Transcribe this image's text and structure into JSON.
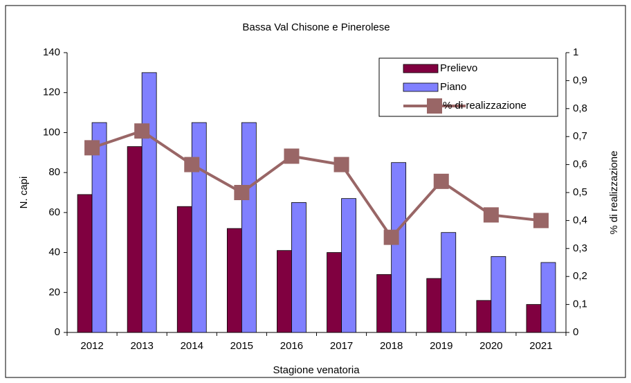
{
  "chart_data": {
    "type": "bar",
    "title": "Bassa Val Chisone e Pinerolese",
    "xlabel": "Stagione venatoria",
    "ylabel": "N. capi",
    "y2label": "% di realizzazione",
    "categories": [
      "2012",
      "2013",
      "2014",
      "2015",
      "2016",
      "2017",
      "2018",
      "2019",
      "2020",
      "2021"
    ],
    "series": [
      {
        "name": "Prelievo",
        "color": "#800040",
        "type": "bar",
        "values": [
          69,
          93,
          63,
          52,
          41,
          40,
          29,
          27,
          16,
          14
        ]
      },
      {
        "name": "Piano",
        "color": "#8080ff",
        "type": "bar",
        "values": [
          105,
          130,
          105,
          105,
          65,
          67,
          85,
          50,
          38,
          35
        ]
      },
      {
        "name": "% di realizzazione",
        "color": "#996666",
        "type": "line",
        "axis": "y2",
        "values": [
          0.66,
          0.72,
          0.6,
          0.5,
          0.63,
          0.6,
          0.34,
          0.54,
          0.42,
          0.4
        ]
      }
    ],
    "ylim": [
      0,
      140
    ],
    "yticks": [
      0,
      20,
      40,
      60,
      80,
      100,
      120,
      140
    ],
    "y2lim": [
      0,
      1
    ],
    "y2ticks": [
      0,
      {
        "value": 0.1,
        "label": "0,1"
      },
      {
        "value": 0.2,
        "label": "0,2"
      },
      {
        "value": 0.3,
        "label": "0,3"
      },
      {
        "value": 0.4,
        "label": "0,4"
      },
      {
        "value": 0.5,
        "label": "0,5"
      },
      {
        "value": 0.6,
        "label": "0,6"
      },
      {
        "value": 0.7,
        "label": "0,7"
      },
      {
        "value": 0.8,
        "label": "0,8"
      },
      {
        "value": 0.9,
        "label": "0,9"
      },
      1
    ],
    "legend": "upper right",
    "grid": false
  }
}
